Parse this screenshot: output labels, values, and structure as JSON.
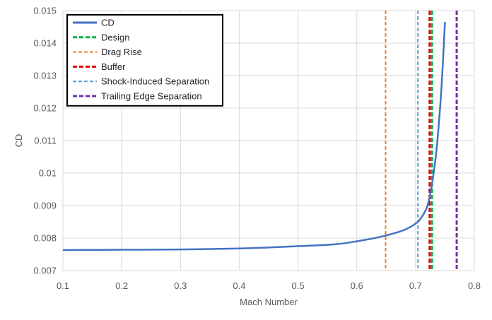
{
  "chart_data": {
    "type": "line",
    "title": "",
    "xlabel": "Mach Number",
    "ylabel": "CD",
    "xlim": [
      0.1,
      0.8
    ],
    "ylim": [
      0.007,
      0.015
    ],
    "x_ticks": [
      "0.1",
      "0.2",
      "0.3",
      "0.4",
      "0.5",
      "0.6",
      "0.7",
      "0.8"
    ],
    "y_ticks": [
      "0.007",
      "0.008",
      "0.009",
      "0.01",
      "0.011",
      "0.012",
      "0.013",
      "0.014",
      "0.015"
    ],
    "grid": true,
    "legend_position": "top-left",
    "series": [
      {
        "name": "CD",
        "color": "#4472c4",
        "style": "solid",
        "x": [
          0.1,
          0.2,
          0.3,
          0.4,
          0.45,
          0.5,
          0.55,
          0.575,
          0.6,
          0.625,
          0.65,
          0.675,
          0.69,
          0.705,
          0.715,
          0.72,
          0.725,
          0.73,
          0.735,
          0.74,
          0.745,
          0.75
        ],
        "y": [
          0.00763,
          0.00764,
          0.00765,
          0.00768,
          0.00771,
          0.00775,
          0.00779,
          0.00783,
          0.0079,
          0.00798,
          0.00808,
          0.00821,
          0.00833,
          0.00852,
          0.00878,
          0.00898,
          0.00935,
          0.0099,
          0.0106,
          0.0116,
          0.0129,
          0.01465
        ]
      }
    ],
    "reference_lines": [
      {
        "name": "Design",
        "x": 0.728,
        "color": "#00b050",
        "style": "dashed-bold"
      },
      {
        "name": "Drag Rise",
        "x": 0.649,
        "color": "#ed7d31",
        "style": "dashed"
      },
      {
        "name": "Buffer",
        "x": 0.724,
        "color": "#e00000",
        "style": "dashed-bold"
      },
      {
        "name": "Shock-Induced Separation",
        "x": 0.704,
        "color": "#5b9bd5",
        "style": "dashed"
      },
      {
        "name": "Trailing Edge Separation",
        "x": 0.77,
        "color": "#7030a0",
        "style": "dashed-bold"
      }
    ]
  }
}
